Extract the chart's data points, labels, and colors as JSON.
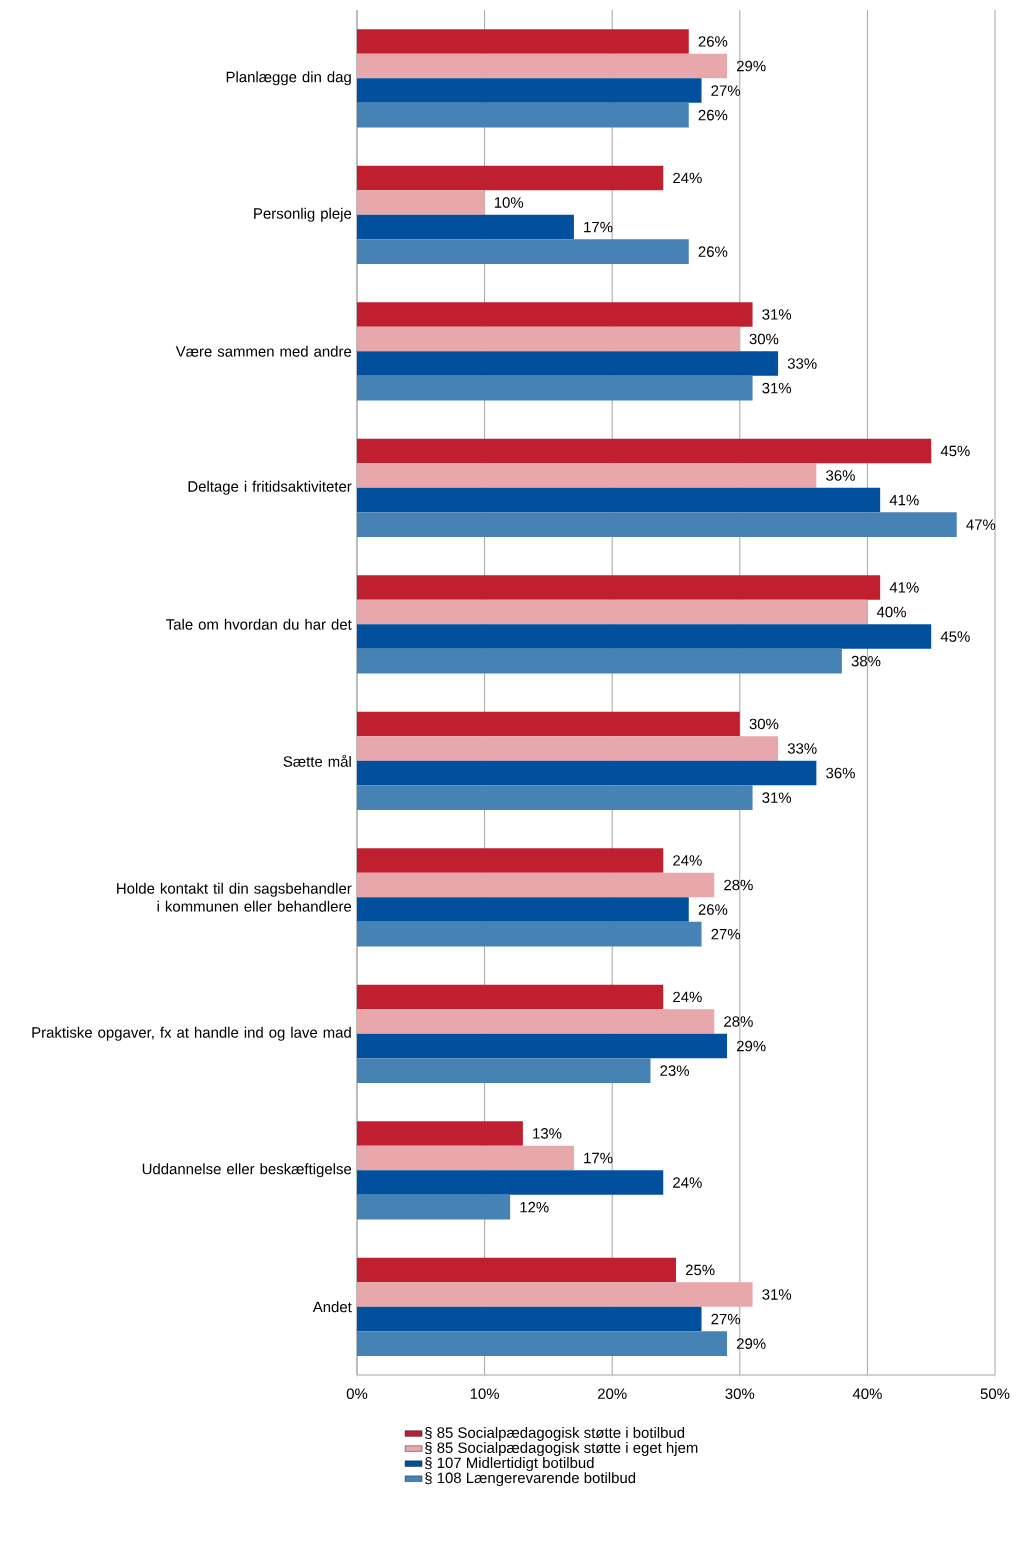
{
  "chart_data": {
    "type": "bar",
    "orientation": "horizontal",
    "categories": [
      "Planlægge din dag",
      "Personlig pleje",
      "Være sammen med andre",
      "Deltage i fritidsaktiviteter",
      "Tale om hvordan du har det",
      "Sætte mål",
      "Holde kontakt til din sagsbehandler i kommunen eller behandlere",
      "Praktiske opgaver, fx at handle ind og lave mad",
      "Uddannelse eller beskæftigelse",
      "Andet"
    ],
    "series": [
      {
        "name": "§ 85 Socialpædagogisk støtte i botilbud",
        "color": "#c01f2f",
        "values": [
          26,
          24,
          31,
          45,
          41,
          30,
          24,
          24,
          13,
          25
        ],
        "value_labels": [
          "26%",
          "24%",
          "31%",
          "45%",
          "41%",
          "30%",
          "24%",
          "24%",
          "13%",
          "25%"
        ]
      },
      {
        "name": "§ 85 Socialpædagogisk støtte i eget hjem",
        "color": "#e8a7ab",
        "values": [
          29,
          10,
          30,
          36,
          40,
          33,
          28,
          28,
          17,
          31
        ],
        "value_labels": [
          "29%",
          "10%",
          "30%",
          "36%",
          "40%",
          "33%",
          "28%",
          "28%",
          "17%",
          "31%"
        ]
      },
      {
        "name": "§ 107 Midlertidigt botilbud",
        "color": "#00509d",
        "values": [
          27,
          17,
          33,
          41,
          45,
          36,
          26,
          29,
          24,
          27
        ],
        "value_labels": [
          "27%",
          "17%",
          "33%",
          "41%",
          "45%",
          "36%",
          "26%",
          "29%",
          "24%",
          "27%"
        ]
      },
      {
        "name": "§ 108 Længerevarende botilbud",
        "color": "#4682b4",
        "values": [
          26,
          26,
          31,
          47,
          38,
          31,
          27,
          23,
          12,
          29
        ],
        "value_labels": [
          "26%",
          "26%",
          "31%",
          "47%",
          "38%",
          "31%",
          "27%",
          "23%",
          "12%",
          "29%"
        ]
      }
    ],
    "xlim": [
      0,
      50
    ],
    "xticks": [
      {
        "value": 0,
        "label": "0%"
      },
      {
        "value": 10,
        "label": "10%"
      },
      {
        "value": 20,
        "label": "20%"
      },
      {
        "value": 30,
        "label": "30%"
      },
      {
        "value": 40,
        "label": "40%"
      },
      {
        "value": 50,
        "label": "50%"
      }
    ],
    "grid": "x",
    "legend": "bottom"
  }
}
